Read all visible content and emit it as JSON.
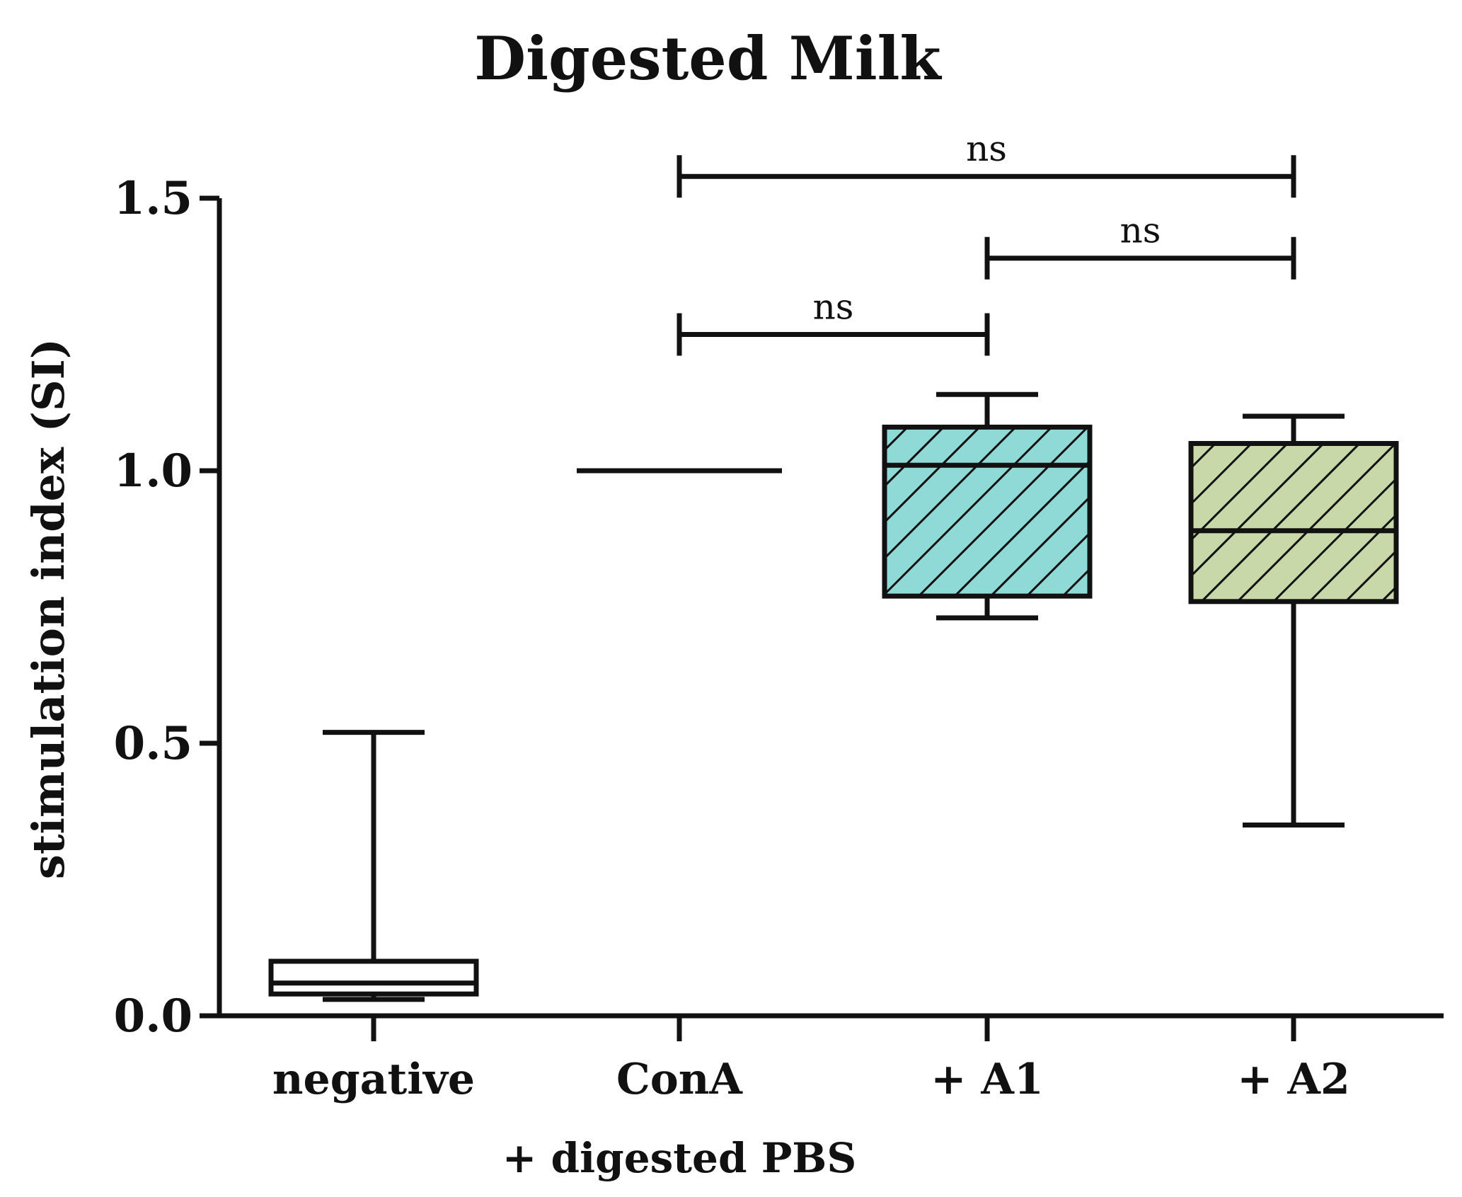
{
  "chart_data": {
    "type": "box",
    "title": "Digested Milk",
    "xlabel": "",
    "ylabel": "stimulation index (SI)",
    "ylim": [
      0,
      1.5
    ],
    "yticks": [
      {
        "value": 0.0,
        "label": "0.0"
      },
      {
        "value": 0.5,
        "label": "0.5"
      },
      {
        "value": 1.0,
        "label": "1.0"
      },
      {
        "value": 1.5,
        "label": "1.5"
      }
    ],
    "categories": [
      "negative",
      "ConA",
      "+ A1",
      "+ A2"
    ],
    "group_label": "+ digested PBS",
    "series": [
      {
        "name": "negative",
        "min": 0.03,
        "q1": 0.04,
        "median": 0.06,
        "q3": 0.1,
        "max": 0.52,
        "fill": "#ffffff",
        "hatch": false
      },
      {
        "name": "ConA",
        "min": 1.0,
        "q1": 1.0,
        "median": 1.0,
        "q3": 1.0,
        "max": 1.0,
        "fill": "#ffffff",
        "hatch": false
      },
      {
        "name": "+ A1",
        "min": 0.73,
        "q1": 0.77,
        "median": 1.01,
        "q3": 1.08,
        "max": 1.14,
        "fill": "#8fd9d6",
        "hatch": true
      },
      {
        "name": "+ A2",
        "min": 0.35,
        "q1": 0.76,
        "median": 0.89,
        "q3": 1.05,
        "max": 1.1,
        "fill": "#c8d8a8",
        "hatch": true
      }
    ],
    "annotations": [
      {
        "from": "ConA",
        "to": "+ A1",
        "y": 1.25,
        "label": "ns"
      },
      {
        "from": "+ A1",
        "to": "+ A2",
        "y": 1.39,
        "label": "ns"
      },
      {
        "from": "ConA",
        "to": "+ A2",
        "y": 1.54,
        "label": "ns"
      }
    ],
    "colors": {
      "axis": "#111111",
      "text": "#111111",
      "a1_fill": "#8fd9d6",
      "a2_fill": "#c8d8a8"
    }
  }
}
